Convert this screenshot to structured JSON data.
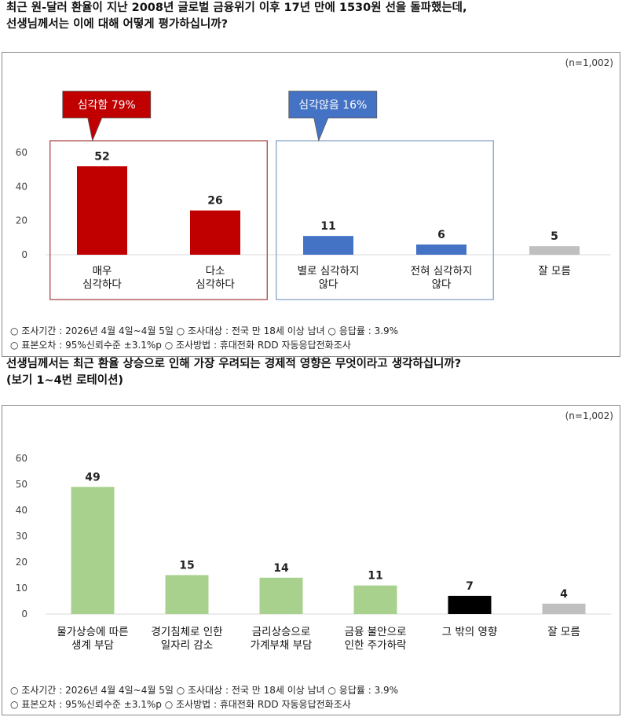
{
  "question1": {
    "line1": "최근 원-달러 환율이 지난 2008년 글로벌 금융위기 이후 17년 만에 1530원 선을 돌파했는데,",
    "line2": "선생님께서는 이에 대해 어떻게 평가하십니까?"
  },
  "question2": {
    "line1": "선생님께서는 최근 환율 상승으로 인해 가장 우려되는 경제적 영향은 무엇이라고 생각하십니까?",
    "line2": "(보기 1~4번 로테이션)"
  },
  "sample_label": "(n=1,002)",
  "footer": {
    "line1": "○ 조사기간 : 2026년 4월 4일~4월 5일 ○ 조사대상 : 전국 만 18세 이상 남녀 ○ 응답률 : 3.9%",
    "line2": "○ 표본오차 : 95%신뢰수준 ±3.1%p ○ 조사방법 : 휴대전화 RDD 자동응답전화조사"
  },
  "colors": {
    "red": "#c00000",
    "blue": "#4472c4",
    "gray": "#bfbfbf",
    "green": "#a9d18e",
    "black": "#000000"
  },
  "chart_data": [
    {
      "type": "bar",
      "categories": [
        [
          "매우",
          "심각하다"
        ],
        [
          "다소",
          "심각하다"
        ],
        [
          "별로 심각하지",
          "않다"
        ],
        [
          "전혀 심각하지",
          "않다"
        ],
        [
          "잘 모름"
        ]
      ],
      "values": [
        52,
        26,
        11,
        6,
        5
      ],
      "bar_colors": [
        "red",
        "red",
        "blue",
        "blue",
        "gray"
      ],
      "ylim": [
        0,
        60
      ],
      "yticks": [
        0,
        20,
        40,
        60
      ],
      "grid": false,
      "annotations": [
        {
          "label": "심각함 79%",
          "color": "red",
          "group": [
            0,
            1
          ]
        },
        {
          "label": "심각않음 16%",
          "color": "blue",
          "group": [
            2,
            3
          ]
        }
      ]
    },
    {
      "type": "bar",
      "categories": [
        [
          "물가상승에 따른",
          "생계 부담"
        ],
        [
          "경기침체로 인한",
          "일자리 감소"
        ],
        [
          "금리상승으로",
          "가계부채 부담"
        ],
        [
          "금융 불안으로",
          "인한 주가하락"
        ],
        [
          "그 밖의 영향"
        ],
        [
          "잘 모름"
        ]
      ],
      "values": [
        49,
        15,
        14,
        11,
        7,
        4
      ],
      "bar_colors": [
        "green",
        "green",
        "green",
        "green",
        "black",
        "gray"
      ],
      "ylim": [
        0,
        60
      ],
      "yticks": [
        0,
        10,
        20,
        30,
        40,
        50,
        60
      ],
      "grid": false
    }
  ]
}
